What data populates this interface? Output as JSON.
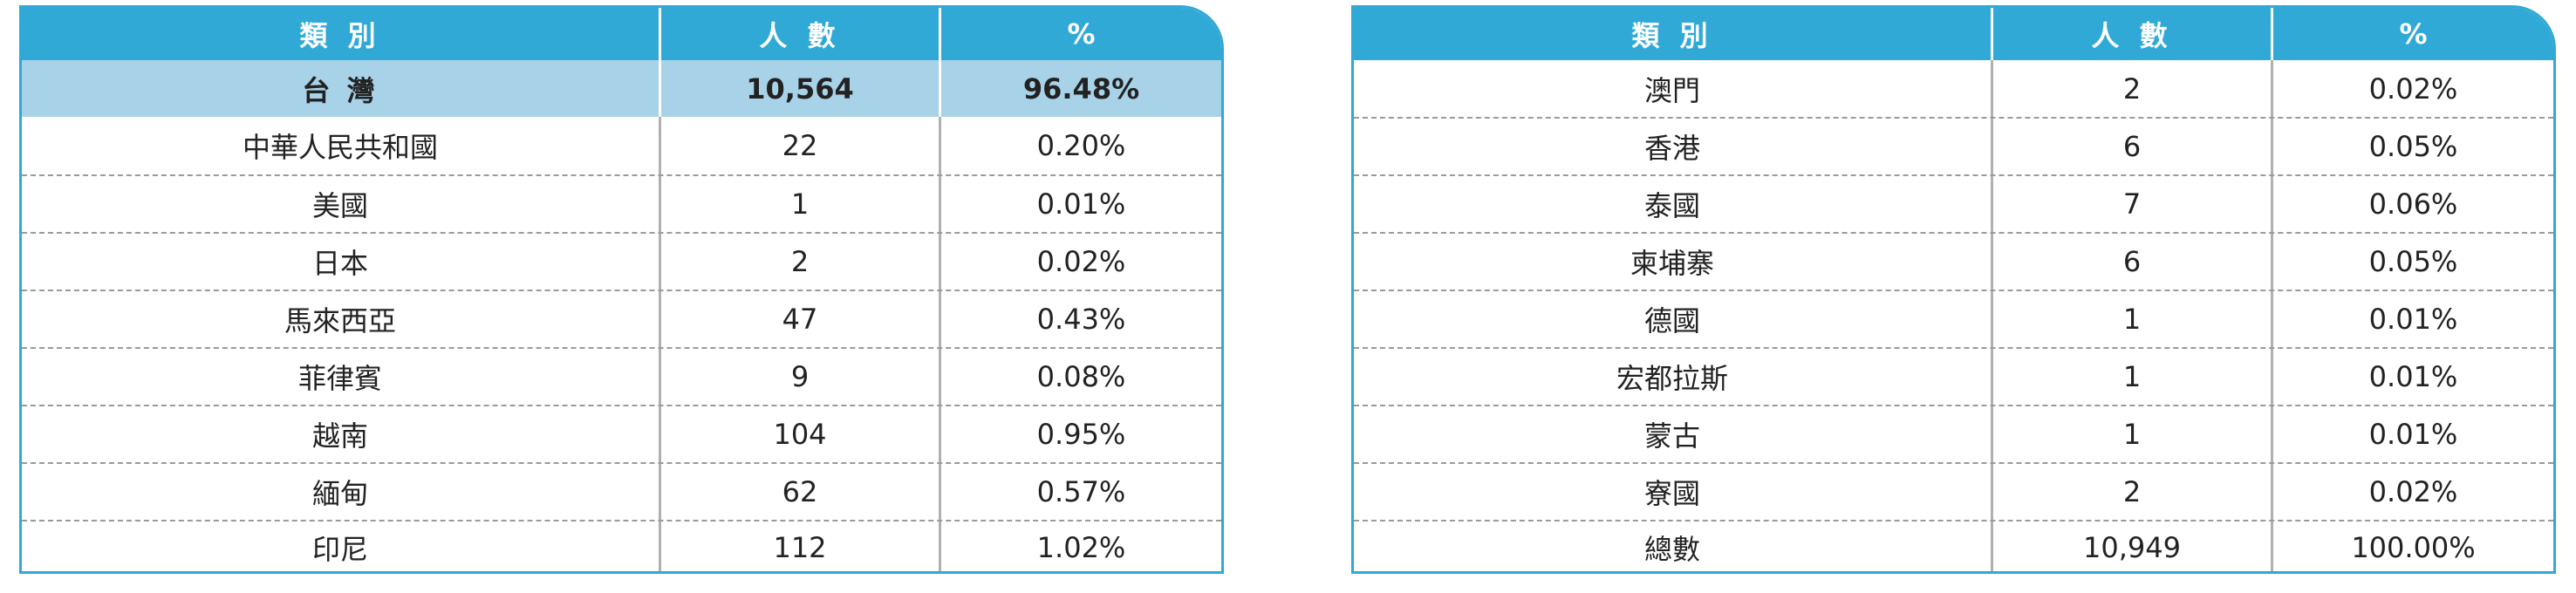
{
  "tables": [
    {
      "header": {
        "category": "類 別",
        "count": "人 數",
        "percent": "%"
      },
      "rows": [
        {
          "category": "台 灣",
          "count": "10,564",
          "percent": "96.48%",
          "highlight": true
        },
        {
          "category": "中華人民共和國",
          "count": "22",
          "percent": "0.20%"
        },
        {
          "category": "美國",
          "count": "1",
          "percent": "0.01%"
        },
        {
          "category": "日本",
          "count": "2",
          "percent": "0.02%"
        },
        {
          "category": "馬來西亞",
          "count": "47",
          "percent": "0.43%"
        },
        {
          "category": "菲律賓",
          "count": "9",
          "percent": "0.08%"
        },
        {
          "category": "越南",
          "count": "104",
          "percent": "0.95%"
        },
        {
          "category": "緬甸",
          "count": "62",
          "percent": "0.57%"
        },
        {
          "category": "印尼",
          "count": "112",
          "percent": "1.02%"
        }
      ]
    },
    {
      "header": {
        "category": "類 別",
        "count": "人 數",
        "percent": "%"
      },
      "rows": [
        {
          "category": "澳門",
          "count": "2",
          "percent": "0.02%"
        },
        {
          "category": "香港",
          "count": "6",
          "percent": "0.05%"
        },
        {
          "category": "泰國",
          "count": "7",
          "percent": "0.06%"
        },
        {
          "category": "柬埔寨",
          "count": "6",
          "percent": "0.05%"
        },
        {
          "category": "德國",
          "count": "1",
          "percent": "0.01%"
        },
        {
          "category": "宏都拉斯",
          "count": "1",
          "percent": "0.01%"
        },
        {
          "category": "蒙古",
          "count": "1",
          "percent": "0.01%"
        },
        {
          "category": "寮國",
          "count": "2",
          "percent": "0.02%"
        },
        {
          "category": "總數",
          "count": "10,949",
          "percent": "100.00%"
        }
      ]
    }
  ],
  "colors": {
    "header_bg": "#30a9d6",
    "highlight_bg": "#a8d2e8"
  }
}
